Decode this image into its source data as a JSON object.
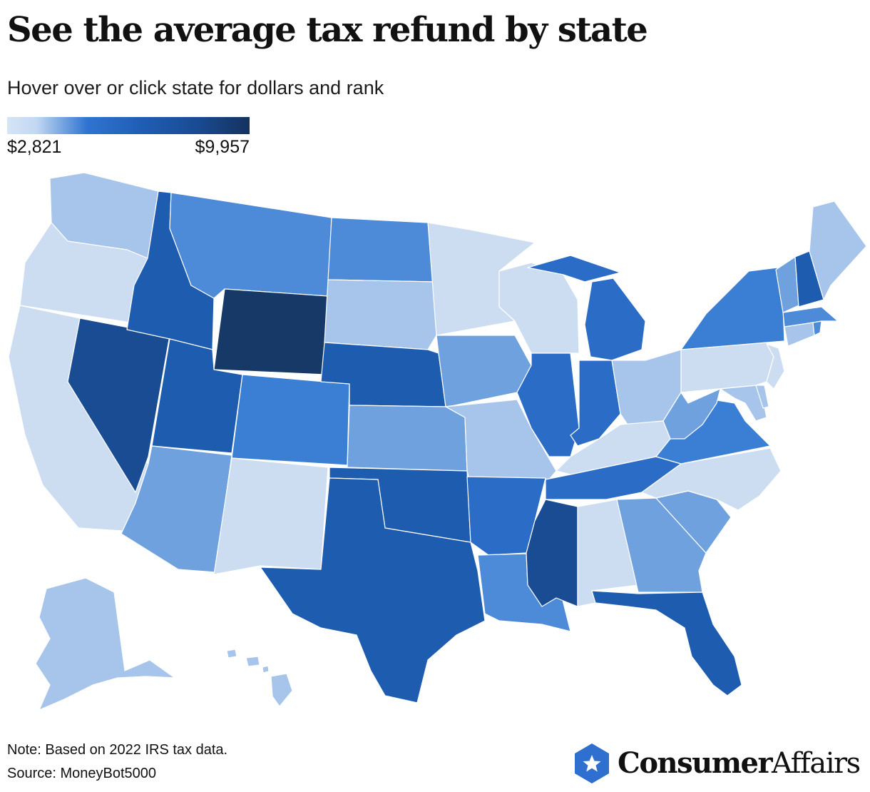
{
  "title": "See the average tax refund by state",
  "subtitle": "Hover over or click state for dollars and rank",
  "legend": {
    "min_label": "$2,821",
    "max_label": "$9,957"
  },
  "footer": {
    "note": "Note: Based on 2022 IRS tax data.",
    "source": "Source: MoneyBot5000"
  },
  "brand": {
    "name_part1": "Consumer",
    "name_part2": "Affairs"
  },
  "colors": {
    "very_light": "#ccddf2",
    "light": "#a7c5ea",
    "medium_light": "#6fa1df",
    "medium": "#4d8ad8",
    "medium_strong": "#3b7fd4",
    "strong": "#2a6cc6",
    "deep": "#1e5cb0",
    "dark": "#1a4c94",
    "darkest": "#163968",
    "brand": "#2f6fd0"
  },
  "chart_data": {
    "type": "choropleth",
    "title": "See the average tax refund by state",
    "value_range": [
      2821,
      9957
    ],
    "shading": {
      "WA": "light",
      "OR": "very_light",
      "CA": "very_light",
      "NV": "dark",
      "ID": "deep",
      "MT": "medium",
      "WY": "darkest",
      "UT": "deep",
      "AZ": "medium_light",
      "NM": "very_light",
      "CO": "medium_strong",
      "ND": "medium",
      "SD": "light",
      "NE": "deep",
      "KS": "medium_light",
      "OK": "deep",
      "TX": "deep",
      "MN": "very_light",
      "IA": "medium_light",
      "MO": "light",
      "AR": "strong",
      "LA": "medium",
      "WI": "very_light",
      "IL": "strong",
      "MI": "strong",
      "IN": "strong",
      "OH": "light",
      "KY": "very_light",
      "TN": "strong",
      "MS": "dark",
      "AL": "very_light",
      "GA": "medium_light",
      "FL": "deep",
      "SC": "medium_light",
      "NC": "very_light",
      "VA": "medium_strong",
      "WV": "medium_light",
      "PA": "very_light",
      "NY": "medium_strong",
      "ME": "light",
      "VT": "medium_light",
      "NH": "deep",
      "MA": "medium",
      "CT": "light",
      "RI": "medium",
      "NJ": "very_light",
      "DE": "light",
      "MD": "light",
      "AK": "light",
      "HI": "light"
    }
  }
}
